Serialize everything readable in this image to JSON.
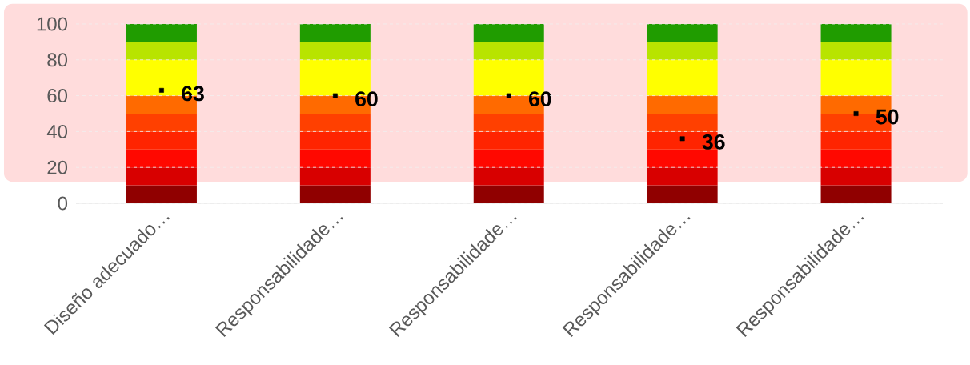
{
  "chart_data": {
    "type": "bar",
    "stacked": true,
    "categories": [
      "Diseño adecuado…",
      "Responsabilidade…",
      "Responsabilidade…",
      "Responsabilidade…",
      "Responsabilidade…"
    ],
    "series": [
      {
        "color": "#900000",
        "values": [
          10,
          10,
          10,
          10,
          10
        ]
      },
      {
        "color": "#d80000",
        "values": [
          10,
          10,
          10,
          10,
          10
        ]
      },
      {
        "color": "#ff0800",
        "values": [
          10,
          10,
          10,
          10,
          10
        ]
      },
      {
        "color": "#ff2400",
        "values": [
          10,
          10,
          10,
          10,
          10
        ]
      },
      {
        "color": "#ff4000",
        "values": [
          10,
          10,
          10,
          10,
          10
        ]
      },
      {
        "color": "#ff6a00",
        "values": [
          10,
          10,
          10,
          10,
          10
        ]
      },
      {
        "color": "#ffff00",
        "values": [
          10,
          10,
          10,
          10,
          10
        ]
      },
      {
        "color": "#ffff00",
        "values": [
          10,
          10,
          10,
          10,
          10
        ]
      },
      {
        "color": "#b8e400",
        "values": [
          10,
          10,
          10,
          10,
          10
        ]
      },
      {
        "color": "#209c00",
        "values": [
          10,
          10,
          10,
          10,
          10
        ]
      },
      {
        "type": "scatter",
        "marker": "square",
        "color": "#000000",
        "data_labels": true,
        "values": [
          63,
          60,
          60,
          36,
          50
        ]
      }
    ],
    "ylim": [
      0,
      100
    ],
    "yticks": [
      0,
      20,
      40,
      60,
      80,
      100
    ],
    "grid": "y",
    "bands": [
      {
        "axis": "y",
        "from": 12,
        "to": 100,
        "color": "#ffdcdc"
      }
    ]
  }
}
